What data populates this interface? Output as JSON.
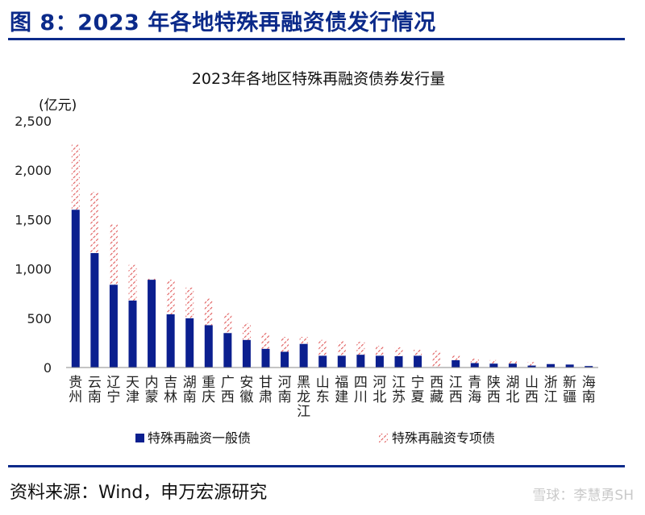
{
  "figure_title": "图 8：2023 年各地特殊再融资债发行情况",
  "source_text": "资料来源：Wind，申万宏源研究",
  "watermark_text": "雪球：李慧勇SH",
  "colors": {
    "heading": "#0b2a8a",
    "general_bond": "#0b1f8f",
    "special_bond": "#e05a5a"
  },
  "chart_data": {
    "type": "bar",
    "stacked": true,
    "title": "2023年各地区特殊再融资债券发行量",
    "y_unit": "(亿元)",
    "ylim": [
      0,
      2500
    ],
    "yticks": [
      "0",
      "500",
      "1,000",
      "1,500",
      "2,000",
      "2,500"
    ],
    "grid": false,
    "legend_position": "bottom",
    "categories": [
      "贵州",
      "云南",
      "辽宁",
      "天津",
      "内蒙",
      "吉林",
      "湖南",
      "重庆",
      "广西",
      "安徽",
      "甘肃",
      "河南",
      "黑龙江",
      "山东",
      "福建",
      "四川",
      "河北",
      "江苏",
      "宁夏",
      "西藏",
      "江西",
      "青海",
      "陕西",
      "湖北",
      "山西",
      "浙江",
      "新疆",
      "海南"
    ],
    "series": [
      {
        "name": "特殊再融资一般债",
        "pattern": "solid",
        "values": [
          1600,
          1160,
          840,
          680,
          890,
          540,
          500,
          430,
          350,
          280,
          190,
          160,
          240,
          120,
          120,
          130,
          120,
          115,
          120,
          0,
          75,
          45,
          40,
          40,
          20,
          35,
          30,
          15
        ]
      },
      {
        "name": "特殊再融资专项债",
        "pattern": "hatched",
        "values": [
          660,
          620,
          610,
          360,
          10,
          350,
          310,
          270,
          200,
          170,
          160,
          150,
          70,
          160,
          150,
          130,
          100,
          90,
          60,
          170,
          45,
          45,
          35,
          30,
          35,
          0,
          0,
          0
        ]
      }
    ]
  }
}
